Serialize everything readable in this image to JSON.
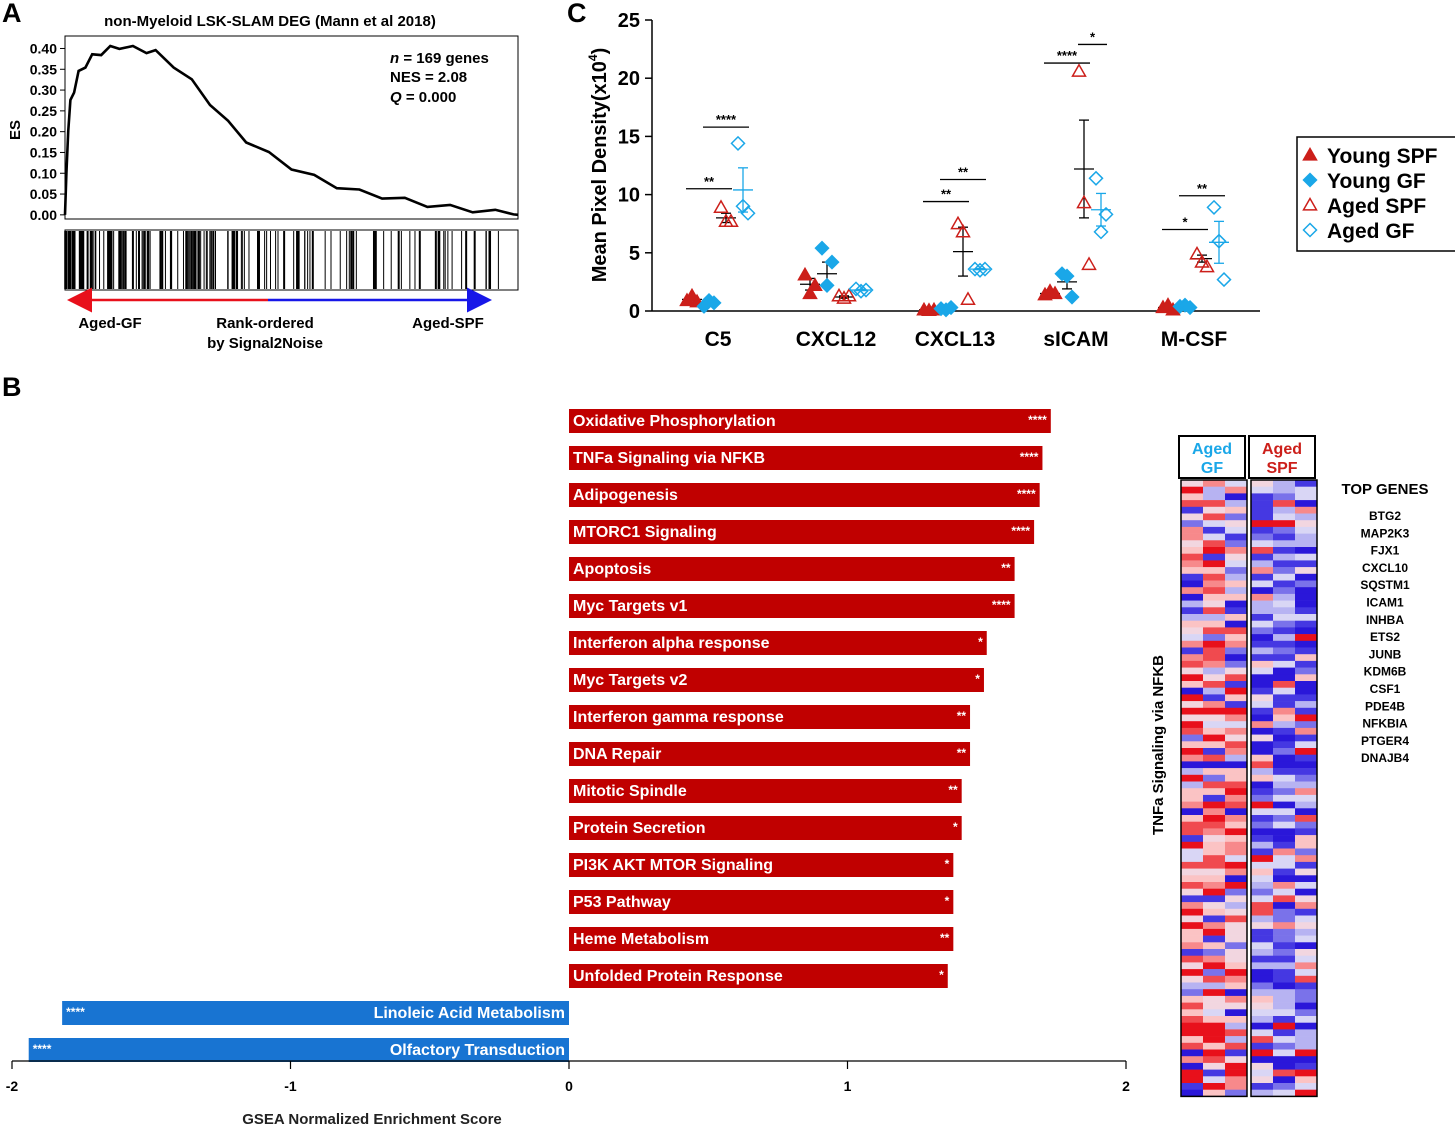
{
  "panel_labels": {
    "a": "A",
    "b": "B",
    "c": "C"
  },
  "colors": {
    "red": "#c00000",
    "blue": "#1874d2",
    "cyan": "#1aa7e8",
    "red_mark": "#cc1f1a"
  },
  "chart_data": [
    {
      "id": "A",
      "type": "line",
      "title": "non-Myeloid LSK-SLAM DEG (Mann et al 2018)",
      "ylabel": "ES",
      "ylim": [
        -0.01,
        0.43
      ],
      "yticks": [
        "0.00",
        "0.05",
        "0.10",
        "0.15",
        "0.20",
        "0.25",
        "0.30",
        "0.35",
        "0.40"
      ],
      "stats": {
        "n_label": "n",
        "n_value": " = 169 genes",
        "nes": "NES = 2.08",
        "q_label": "Q",
        "q_value": " = 0.000"
      },
      "curve_rank": [
        0,
        0.003,
        0.007,
        0.012,
        0.02,
        0.03,
        0.045,
        0.06,
        0.08,
        0.1,
        0.12,
        0.15,
        0.18,
        0.2,
        0.24,
        0.28,
        0.32,
        0.36,
        0.4,
        0.45,
        0.5,
        0.55,
        0.6,
        0.65,
        0.7,
        0.75,
        0.8,
        0.85,
        0.9,
        0.95,
        0.99,
        1.0
      ],
      "curve_es": [
        0,
        0.1,
        0.2,
        0.27,
        0.3,
        0.34,
        0.36,
        0.38,
        0.39,
        0.4,
        0.405,
        0.4,
        0.395,
        0.39,
        0.36,
        0.32,
        0.27,
        0.22,
        0.18,
        0.145,
        0.115,
        0.09,
        0.07,
        0.055,
        0.045,
        0.035,
        0.025,
        0.018,
        0.012,
        0.006,
        0.001,
        0.0
      ],
      "ranking": {
        "left": "Aged-GF",
        "middle": "Rank-ordered",
        "middle2": "by Signal2Noise",
        "right": "Aged-SPF"
      }
    },
    {
      "id": "B",
      "type": "bar",
      "orientation": "horizontal",
      "xlabel": "GSEA Normalized Enrichment Score",
      "xlim": [
        -2,
        2
      ],
      "xticks": [
        "-2",
        "-1",
        "0",
        "1",
        "2"
      ],
      "bars": [
        {
          "label": "Oxidative Phosphorylation",
          "value": 1.73,
          "sig": "****"
        },
        {
          "label": "TNFa Signaling via NFKB",
          "value": 1.7,
          "sig": "****"
        },
        {
          "label": "Adipogenesis",
          "value": 1.69,
          "sig": "****"
        },
        {
          "label": "MTORC1 Signaling",
          "value": 1.67,
          "sig": "****"
        },
        {
          "label": "Apoptosis",
          "value": 1.6,
          "sig": "**"
        },
        {
          "label": "Myc Targets v1",
          "value": 1.6,
          "sig": "****"
        },
        {
          "label": "Interferon alpha response",
          "value": 1.5,
          "sig": "*"
        },
        {
          "label": "Myc Targets v2",
          "value": 1.49,
          "sig": "*"
        },
        {
          "label": "Interferon gamma response",
          "value": 1.44,
          "sig": "**"
        },
        {
          "label": "DNA Repair",
          "value": 1.44,
          "sig": "**"
        },
        {
          "label": "Mitotic Spindle",
          "value": 1.41,
          "sig": "**"
        },
        {
          "label": "Protein Secretion",
          "value": 1.41,
          "sig": "*"
        },
        {
          "label": "PI3K AKT MTOR Signaling",
          "value": 1.38,
          "sig": "*"
        },
        {
          "label": "P53 Pathway",
          "value": 1.38,
          "sig": "*"
        },
        {
          "label": "Heme Metabolism",
          "value": 1.38,
          "sig": "**"
        },
        {
          "label": "Unfolded Protein Response",
          "value": 1.36,
          "sig": "*"
        },
        {
          "label": "Linoleic Acid Metabolism",
          "value": -1.82,
          "sig": "****"
        },
        {
          "label": "Olfactory Transduction",
          "value": -1.94,
          "sig": "****"
        }
      ]
    },
    {
      "id": "C",
      "type": "scatter",
      "ylabel": "Mean Pixel Density(x10",
      "ylabel_sup": "4",
      "ylabel_end": ")",
      "ylim": [
        0,
        25
      ],
      "yticks": [
        "0",
        "5",
        "10",
        "15",
        "20",
        "25"
      ],
      "categories": [
        "C5",
        "CXCL12",
        "CXCL13",
        "sICAM",
        "M-CSF"
      ],
      "legend": [
        "Young SPF",
        "Young GF",
        "Aged SPF",
        "Aged GF"
      ],
      "series": [
        {
          "name": "Young SPF",
          "marker": "triangle-filled",
          "points": [
            [
              0.9,
              1.3,
              0.8
            ],
            [
              3.1,
              1.5,
              2.2
            ],
            [
              0.1,
              0.05,
              0.1
            ],
            [
              1.4,
              1.7,
              1.5
            ],
            [
              0.3,
              0.5,
              0.1
            ]
          ],
          "means": [
            1.0,
            2.3,
            0.1,
            1.5,
            0.3
          ],
          "sems": [
            0.15,
            0.5,
            0.03,
            0.1,
            0.1
          ]
        },
        {
          "name": "Young GF",
          "marker": "diamond-filled",
          "points": [
            [
              0.4,
              0.9,
              0.7
            ],
            [
              5.4,
              2.2,
              4.2
            ],
            [
              0.2,
              0.1,
              0.3
            ],
            [
              3.2,
              3.0,
              1.2
            ],
            [
              0.4,
              0.5,
              0.3
            ]
          ],
          "means": [
            0.6,
            3.2,
            0.2,
            2.5,
            0.4
          ],
          "sems": [
            0.15,
            1.0,
            0.05,
            0.6,
            0.05
          ]
        },
        {
          "name": "Aged SPF",
          "marker": "triangle-open",
          "points": [
            [
              8.9,
              7.7,
              7.7
            ],
            [
              1.3,
              1.1,
              1.3
            ],
            [
              7.5,
              6.8,
              1.0
            ],
            [
              20.6,
              9.3,
              4.0
            ],
            [
              4.9,
              4.2,
              3.8
            ]
          ],
          "means": [
            8.0,
            1.2,
            5.1,
            12.2,
            4.5
          ],
          "sems": [
            0.4,
            0.1,
            2.1,
            4.2,
            0.3
          ]
        },
        {
          "name": "Aged GF",
          "marker": "diamond-open",
          "points": [
            [
              14.4,
              9.0,
              8.4
            ],
            [
              1.9,
              1.7,
              1.8
            ],
            [
              3.6,
              3.5,
              3.6
            ],
            [
              11.4,
              6.8,
              8.3
            ],
            [
              8.9,
              6.0,
              2.7
            ]
          ],
          "means": [
            10.4,
            1.8,
            3.6,
            8.7,
            5.9
          ],
          "sems": [
            1.9,
            0.05,
            0.05,
            1.4,
            1.8
          ]
        }
      ],
      "significance": [
        {
          "cat": 0,
          "from": 0,
          "to": 2,
          "y": 10.5,
          "label": "**"
        },
        {
          "cat": 0,
          "from": 1,
          "to": 3,
          "y": 15.8,
          "label": "****"
        },
        {
          "cat": 2,
          "from": 0,
          "to": 2,
          "y": 9.4,
          "label": "**"
        },
        {
          "cat": 2,
          "from": 1,
          "to": 3,
          "y": 11.3,
          "label": "**"
        },
        {
          "cat": 3,
          "from": 0,
          "to": 2,
          "y": 21.3,
          "label": "****"
        },
        {
          "cat": 3,
          "from": 2,
          "to": 3,
          "y": 22.9,
          "label": "*"
        },
        {
          "cat": 4,
          "from": 0,
          "to": 2,
          "y": 7.0,
          "label": "*"
        },
        {
          "cat": 4,
          "from": 1,
          "to": 3,
          "y": 9.9,
          "label": "**"
        }
      ]
    },
    {
      "id": "heatmap",
      "type": "heatmap",
      "side_label": "TNFa Signaling via NFKB",
      "group1_line1": "Aged",
      "group1_line2": "GF",
      "group2_line1": "Aged",
      "group2_line2": "SPF",
      "genes_header": "TOP GENES",
      "genes": [
        "BTG2",
        "MAP2K3",
        "FJX1",
        "CXCL10",
        "SQSTM1",
        "ICAM1",
        "INHBA",
        "ETS2",
        "JUNB",
        "KDM6B",
        "CSF1",
        "PDE4B",
        "NFKBIA",
        "PTGER4",
        "DNAJB4"
      ],
      "n_columns": 6,
      "n_rows": 92
    }
  ]
}
